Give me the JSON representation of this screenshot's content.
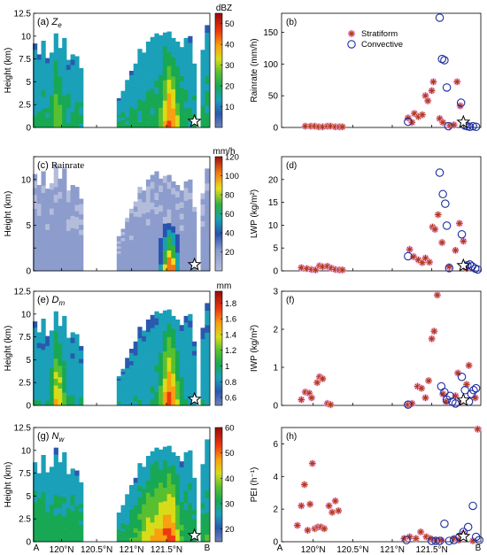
{
  "figure": {
    "panels_left": [
      {
        "label": "(a)",
        "var": "Z",
        "sub": "e",
        "units": "dBZ",
        "ylabel": "Height (km)",
        "cbar": {
          "min": 0,
          "max": 55,
          "ticks": [
            10,
            20,
            30,
            40,
            50
          ],
          "cmap": "radar"
        }
      },
      {
        "label": "(c)",
        "var": "Rainrate",
        "sub": "",
        "units": "mm/h",
        "ylabel": "Height (km)",
        "cbar": {
          "min": 0,
          "max": 120,
          "ticks": [
            20,
            40,
            60,
            80,
            100,
            120
          ],
          "cmap": "rain"
        }
      },
      {
        "label": "(e)",
        "var": "D",
        "sub": "m",
        "units": "mm",
        "ylabel": "Height (km)",
        "cbar": {
          "min": 0.5,
          "max": 1.95,
          "ticks": [
            0.6,
            0.8,
            1,
            1.2,
            1.4,
            1.6,
            1.8
          ],
          "cmap": "radar"
        }
      },
      {
        "label": "(g)",
        "var": "N",
        "sub": "w",
        "units": "",
        "ylabel": "Height (km)",
        "cbar": {
          "min": 15,
          "max": 60,
          "ticks": [
            20,
            30,
            40,
            50,
            60
          ],
          "cmap": "radar"
        }
      }
    ],
    "height_axis": {
      "ticks": [
        "0",
        "2.5",
        "5",
        "7.5",
        "10",
        "12.5"
      ],
      "alt_ticks": [
        "0",
        "5",
        "10"
      ]
    },
    "x_axis": {
      "ticks": [
        "120°N",
        "120.5°N",
        "121°N",
        "121.5°N"
      ],
      "endpoints": [
        "A",
        "B"
      ]
    },
    "legend": [
      "Stratiform",
      "Convective"
    ],
    "colors": {
      "stratiform": "#b03a10",
      "convective": "#1c2ea0",
      "halo": "#f2a6e6"
    }
  },
  "chart_data": [
    {
      "id": "b",
      "type": "scatter",
      "label": "(b)",
      "ylabel": "Rainrate (mm/h)",
      "ylim": [
        0,
        180
      ],
      "yticks": [
        0,
        50,
        100,
        150
      ],
      "legend": [
        "Stratiform",
        "Convective"
      ],
      "stratiform": [
        [
          119.9,
          2
        ],
        [
          119.97,
          2
        ],
        [
          120.02,
          2
        ],
        [
          120.07,
          1
        ],
        [
          120.12,
          1
        ],
        [
          120.18,
          2
        ],
        [
          120.22,
          2
        ],
        [
          120.28,
          1
        ],
        [
          120.33,
          1
        ],
        [
          120.37,
          1
        ],
        [
          121.2,
          15
        ],
        [
          121.25,
          8
        ],
        [
          121.28,
          22
        ],
        [
          121.33,
          17
        ],
        [
          121.38,
          20
        ],
        [
          121.42,
          50
        ],
        [
          121.45,
          42
        ],
        [
          121.5,
          58
        ],
        [
          121.52,
          72
        ],
        [
          121.6,
          14
        ],
        [
          121.64,
          8
        ],
        [
          121.73,
          3
        ],
        [
          121.78,
          4
        ],
        [
          121.82,
          72
        ],
        [
          121.86,
          34
        ]
      ],
      "convective": [
        [
          121.2,
          9
        ],
        [
          121.6,
          173
        ],
        [
          121.63,
          108
        ],
        [
          121.66,
          106
        ],
        [
          121.69,
          63
        ],
        [
          121.71,
          2
        ],
        [
          121.87,
          39
        ],
        [
          121.92,
          3
        ],
        [
          121.95,
          2
        ],
        [
          121.98,
          1
        ],
        [
          122.02,
          2
        ],
        [
          122.06,
          1
        ]
      ]
    },
    {
      "id": "d",
      "type": "scatter",
      "label": "(d)",
      "ylabel": "LWP (kg/m²)",
      "ylim": [
        0,
        25
      ],
      "yticks": [
        0,
        5,
        10,
        15,
        20
      ],
      "stratiform": [
        [
          119.85,
          0.7
        ],
        [
          119.92,
          0.5
        ],
        [
          119.98,
          0.3
        ],
        [
          120.03,
          0.2
        ],
        [
          120.08,
          1.1
        ],
        [
          120.12,
          0.9
        ],
        [
          120.18,
          1.0
        ],
        [
          120.23,
          0.6
        ],
        [
          120.28,
          0.3
        ],
        [
          120.33,
          0.2
        ],
        [
          120.37,
          0.2
        ],
        [
          121.22,
          4.7
        ],
        [
          121.27,
          3.1
        ],
        [
          121.33,
          2.4
        ],
        [
          121.38,
          1.8
        ],
        [
          121.42,
          2.8
        ],
        [
          121.47,
          1.9
        ],
        [
          121.51,
          9.6
        ],
        [
          121.54,
          9.1
        ],
        [
          121.58,
          12.3
        ],
        [
          121.63,
          6.2
        ],
        [
          121.72,
          0.9
        ],
        [
          121.8,
          4.5
        ],
        [
          121.85,
          10.4
        ],
        [
          121.9,
          6.5
        ],
        [
          121.94,
          0.5
        ]
      ],
      "convective": [
        [
          121.2,
          3.2
        ],
        [
          121.6,
          21.5
        ],
        [
          121.64,
          16.8
        ],
        [
          121.67,
          14.7
        ],
        [
          121.69,
          9.9
        ],
        [
          121.72,
          0.6
        ],
        [
          121.88,
          8.0
        ],
        [
          121.92,
          1.1
        ],
        [
          121.95,
          1.2
        ],
        [
          121.98,
          1.4
        ],
        [
          122.01,
          1.0
        ],
        [
          122.05,
          0.5
        ],
        [
          122.08,
          0.3
        ]
      ]
    },
    {
      "id": "f",
      "type": "scatter",
      "label": "(f)",
      "ylabel": "IWP (kg/m²)",
      "ylim": [
        0,
        3
      ],
      "yticks": [
        0,
        1,
        2,
        3
      ],
      "stratiform": [
        [
          119.85,
          0.15
        ],
        [
          119.9,
          0.35
        ],
        [
          119.95,
          0.32
        ],
        [
          119.98,
          0.2
        ],
        [
          120.05,
          0.6
        ],
        [
          120.08,
          0.75
        ],
        [
          120.12,
          0.7
        ],
        [
          120.18,
          0.05
        ],
        [
          120.22,
          0.02
        ],
        [
          121.2,
          0.02
        ],
        [
          121.25,
          0.05
        ],
        [
          121.32,
          0.5
        ],
        [
          121.37,
          0.45
        ],
        [
          121.42,
          0.2
        ],
        [
          121.46,
          0.65
        ],
        [
          121.5,
          1.75
        ],
        [
          121.53,
          1.95
        ],
        [
          121.57,
          2.9
        ],
        [
          121.64,
          0.3
        ],
        [
          121.68,
          0.1
        ],
        [
          121.8,
          0.25
        ],
        [
          121.83,
          0.85
        ],
        [
          121.87,
          0.1
        ],
        [
          121.94,
          0.55
        ],
        [
          121.97,
          1.05
        ],
        [
          122.05,
          0.2
        ]
      ],
      "convective": [
        [
          121.2,
          0.02
        ],
        [
          121.62,
          0.5
        ],
        [
          121.66,
          0.35
        ],
        [
          121.69,
          0.15
        ],
        [
          121.73,
          0.25
        ],
        [
          121.76,
          0.1
        ],
        [
          121.8,
          0.05
        ],
        [
          121.88,
          0.75
        ],
        [
          121.92,
          0.4
        ],
        [
          121.97,
          0.1
        ],
        [
          122.0,
          0.3
        ],
        [
          122.03,
          0.4
        ],
        [
          122.06,
          0.45
        ]
      ]
    },
    {
      "id": "h",
      "type": "scatter",
      "label": "(h)",
      "ylabel": "PEI (h⁻¹)",
      "ylim": [
        0,
        7
      ],
      "yticks": [
        0,
        2,
        4,
        6
      ],
      "stratiform": [
        [
          119.8,
          1.0
        ],
        [
          119.85,
          2.2
        ],
        [
          119.89,
          3.5
        ],
        [
          119.93,
          0.7
        ],
        [
          119.96,
          2.3
        ],
        [
          119.99,
          4.8
        ],
        [
          120.02,
          0.8
        ],
        [
          120.06,
          0.9
        ],
        [
          120.1,
          0.9
        ],
        [
          120.14,
          0.8
        ],
        [
          120.2,
          2.2
        ],
        [
          120.24,
          1.8
        ],
        [
          120.28,
          2.5
        ],
        [
          120.32,
          1.9
        ],
        [
          121.15,
          0.2
        ],
        [
          121.22,
          0.3
        ],
        [
          121.3,
          0.2
        ],
        [
          121.36,
          0.6
        ],
        [
          121.43,
          0.3
        ],
        [
          121.48,
          0.2
        ],
        [
          121.55,
          0.1
        ],
        [
          121.62,
          0.1
        ],
        [
          121.78,
          0.2
        ],
        [
          121.84,
          0.1
        ],
        [
          121.9,
          0.5
        ],
        [
          122.02,
          0.05
        ],
        [
          122.08,
          6.9
        ]
      ],
      "convective": [
        [
          121.18,
          0.1
        ],
        [
          121.5,
          0.05
        ],
        [
          121.55,
          0.05
        ],
        [
          121.6,
          0.05
        ],
        [
          121.66,
          1.1
        ],
        [
          121.72,
          0.05
        ],
        [
          121.78,
          0.1
        ],
        [
          121.85,
          0.3
        ],
        [
          121.9,
          0.6
        ],
        [
          121.96,
          0.9
        ],
        [
          122.02,
          2.2
        ],
        [
          122.06,
          0.3
        ],
        [
          122.1,
          0.1
        ]
      ]
    }
  ]
}
